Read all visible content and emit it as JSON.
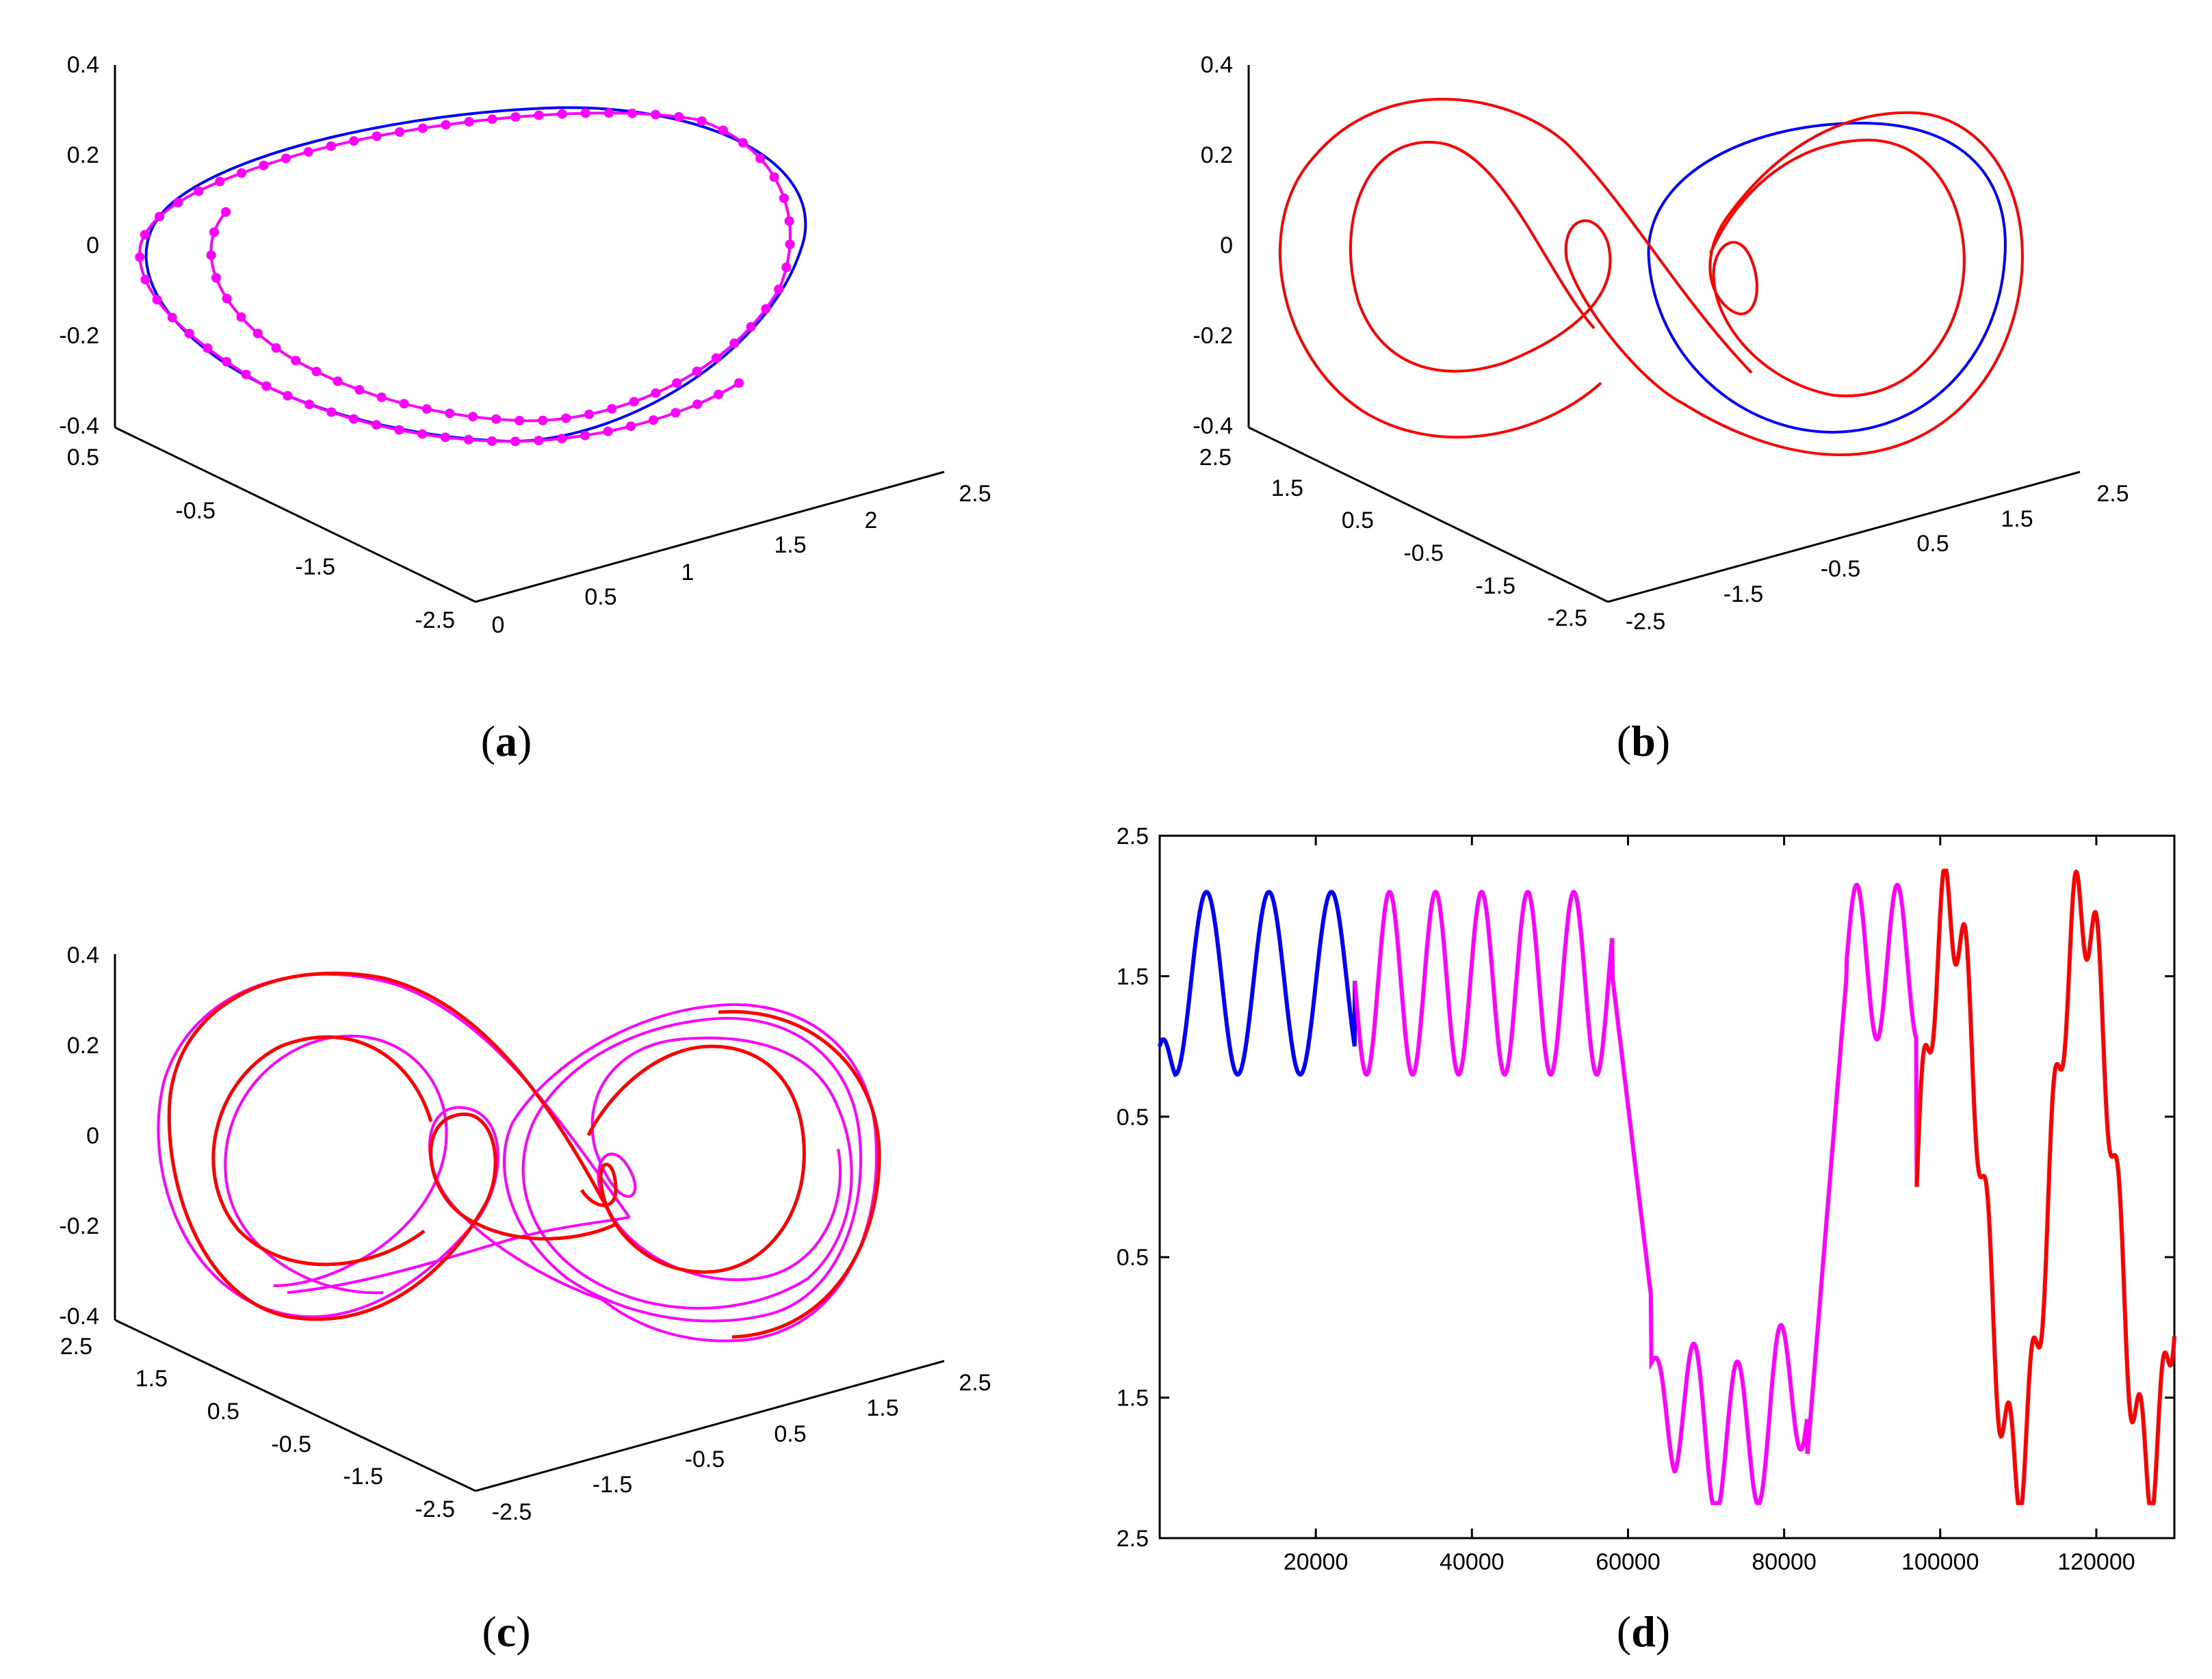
{
  "colors": {
    "blue": "#0000ff",
    "magenta": "#ff00ff",
    "red": "#ff0000"
  },
  "chart_data": [
    {
      "type": "line",
      "projection": "3d",
      "panel_label": "(a)",
      "axes": {
        "z_ticks": [
          "0.4",
          "0.2",
          "0",
          "-0.2",
          "-0.4"
        ],
        "left_ticks": [
          "0.5",
          "-0.5",
          "-1.5",
          "-2.5"
        ],
        "right_ticks": [
          "0",
          "0.5",
          "1",
          "1.5",
          "2",
          "2.5"
        ]
      },
      "series": [
        {
          "color": "blue",
          "curve": "limit-cycle",
          "markers": false
        },
        {
          "color": "magenta",
          "curve": "inward-spiral",
          "markers": true
        }
      ]
    },
    {
      "type": "line",
      "projection": "3d",
      "panel_label": "(b)",
      "axes": {
        "z_ticks": [
          "0.4",
          "0.2",
          "0",
          "-0.2",
          "-0.4"
        ],
        "left_ticks": [
          "2.5",
          "1.5",
          "0.5",
          "-0.5",
          "-1.5",
          "-2.5"
        ],
        "right_ticks": [
          "-2.5",
          "-1.5",
          "-0.5",
          "0.5",
          "1.5",
          "2.5"
        ]
      },
      "series": [
        {
          "color": "blue",
          "curve": "single-lobe-cycle"
        },
        {
          "color": "red",
          "curve": "double-scroll"
        }
      ]
    },
    {
      "type": "line",
      "projection": "3d",
      "panel_label": "(c)",
      "axes": {
        "z_ticks": [
          "0.4",
          "0.2",
          "0",
          "-0.2",
          "-0.4"
        ],
        "left_ticks": [
          "2.5",
          "1.5",
          "0.5",
          "-0.5",
          "-1.5",
          "-2.5"
        ],
        "right_ticks": [
          "-2.5",
          "-1.5",
          "-0.5",
          "0.5",
          "1.5",
          "2.5"
        ]
      },
      "series": [
        {
          "color": "magenta",
          "curve": "double-scroll"
        },
        {
          "color": "red",
          "curve": "double-scroll"
        }
      ]
    },
    {
      "type": "line",
      "panel_label": "(d)",
      "xlim": [
        0,
        130000
      ],
      "ylim": [
        -2.5,
        2.5
      ],
      "x_ticks": [
        20000,
        40000,
        60000,
        80000,
        100000,
        120000
      ],
      "x_tick_labels": [
        "20000",
        "40000",
        "60000",
        "80000",
        "100000",
        "120000"
      ],
      "y_tick_labels": [
        "2.5",
        "1.5",
        "0.5",
        "0.5",
        "1.5",
        "2.5"
      ],
      "series": [
        {
          "color": "blue",
          "x": [
            0,
            25000
          ],
          "shape": "oscillation between 0.8 and 2.1"
        },
        {
          "color": "magenta",
          "x": [
            25000,
            97000
          ],
          "shape": "oscillation, then drop to about -2.2, then rise to about 2.2"
        },
        {
          "color": "red",
          "x": [
            97000,
            130000
          ],
          "shape": "irregular oscillation between -2.2 and 2.2"
        }
      ]
    }
  ]
}
